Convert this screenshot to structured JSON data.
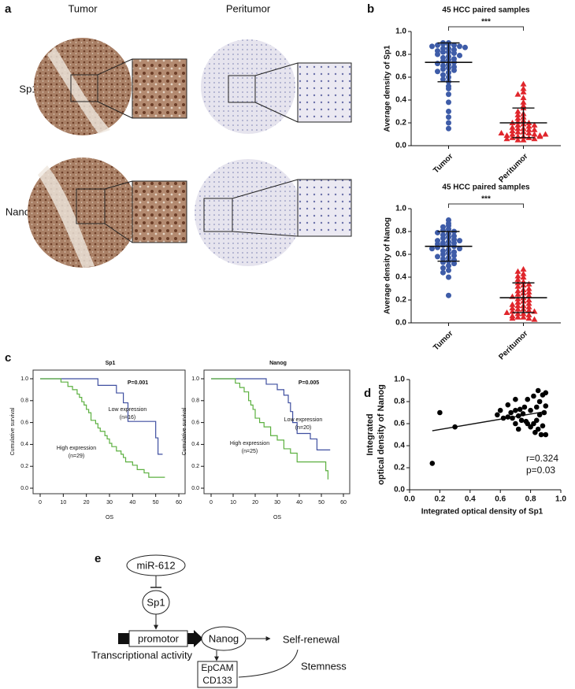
{
  "panel_labels": [
    "a",
    "b",
    "c",
    "d",
    "e"
  ],
  "panel_a": {
    "columns": [
      "Tumor",
      "Peritumor"
    ],
    "rows": [
      "Sp1",
      "Nanog"
    ]
  },
  "chart_data": [
    {
      "type": "strip",
      "title": "45 HCC paired samples",
      "ylabel": "Average density of Sp1",
      "annotation": "***",
      "categories": [
        "Tumor",
        "Peritumor"
      ],
      "groups": [
        {
          "color": "#3e5ca8",
          "marker": "circle",
          "mean": 0.73,
          "sd": 0.17,
          "values": [
            0.9,
            0.9,
            0.89,
            0.89,
            0.88,
            0.88,
            0.87,
            0.87,
            0.86,
            0.85,
            0.85,
            0.84,
            0.83,
            0.82,
            0.82,
            0.81,
            0.8,
            0.79,
            0.78,
            0.77,
            0.76,
            0.75,
            0.74,
            0.73,
            0.72,
            0.71,
            0.7,
            0.69,
            0.68,
            0.67,
            0.66,
            0.65,
            0.64,
            0.62,
            0.6,
            0.58,
            0.56,
            0.52,
            0.5,
            0.45,
            0.38,
            0.3,
            0.25,
            0.2,
            0.15
          ]
        },
        {
          "color": "#e0262c",
          "marker": "triangle",
          "mean": 0.2,
          "sd": 0.13,
          "values": [
            0.54,
            0.5,
            0.47,
            0.45,
            0.42,
            0.38,
            0.35,
            0.33,
            0.3,
            0.28,
            0.27,
            0.25,
            0.24,
            0.22,
            0.21,
            0.2,
            0.19,
            0.18,
            0.17,
            0.16,
            0.15,
            0.15,
            0.14,
            0.13,
            0.12,
            0.12,
            0.11,
            0.1,
            0.1,
            0.09,
            0.09,
            0.08,
            0.08,
            0.07,
            0.07,
            0.06,
            0.06,
            0.05,
            0.05,
            0.2,
            0.18,
            0.14,
            0.11,
            0.08,
            0.1
          ]
        }
      ],
      "ylim": [
        0,
        1
      ],
      "yticks": [
        {
          "value": 0,
          "label": "0.0"
        },
        0.2,
        0.4,
        0.6,
        0.8,
        {
          "value": 1,
          "label": "1.0"
        }
      ]
    },
    {
      "type": "strip",
      "title": "45 HCC paired samples",
      "ylabel": "Average density of Nanog",
      "annotation": "***",
      "categories": [
        "Tumor",
        "Peritumor"
      ],
      "groups": [
        {
          "color": "#3e5ca8",
          "marker": "circle",
          "mean": 0.67,
          "sd": 0.13,
          "values": [
            0.9,
            0.87,
            0.85,
            0.84,
            0.82,
            0.81,
            0.8,
            0.79,
            0.78,
            0.77,
            0.76,
            0.75,
            0.74,
            0.73,
            0.72,
            0.72,
            0.71,
            0.7,
            0.7,
            0.69,
            0.68,
            0.68,
            0.67,
            0.66,
            0.65,
            0.65,
            0.64,
            0.63,
            0.62,
            0.61,
            0.6,
            0.59,
            0.58,
            0.57,
            0.56,
            0.55,
            0.54,
            0.53,
            0.52,
            0.5,
            0.48,
            0.46,
            0.44,
            0.4,
            0.24
          ]
        },
        {
          "color": "#e0262c",
          "marker": "triangle",
          "mean": 0.22,
          "sd": 0.13,
          "values": [
            0.47,
            0.45,
            0.43,
            0.41,
            0.4,
            0.38,
            0.36,
            0.35,
            0.34,
            0.33,
            0.32,
            0.3,
            0.29,
            0.28,
            0.27,
            0.26,
            0.25,
            0.24,
            0.23,
            0.22,
            0.21,
            0.2,
            0.19,
            0.18,
            0.17,
            0.16,
            0.15,
            0.15,
            0.14,
            0.13,
            0.12,
            0.12,
            0.11,
            0.1,
            0.1,
            0.09,
            0.08,
            0.08,
            0.07,
            0.06,
            0.05,
            0.05,
            0.04,
            0.04,
            0.03
          ]
        }
      ],
      "ylim": [
        0,
        1
      ],
      "yticks": [
        {
          "value": 0,
          "label": "0.0"
        },
        0.2,
        0.4,
        0.6,
        0.8,
        {
          "value": 1,
          "label": "1.0"
        }
      ]
    },
    {
      "type": "line",
      "step": true,
      "title": "Sp1",
      "xlabel": "OS",
      "ylabel": "Cumulative survival",
      "annotations": [
        "P=0.001"
      ],
      "series": [
        {
          "name": "Low expression",
          "n_label": "(n=16)",
          "color": "#3f4fa0",
          "x": [
            0,
            25,
            33,
            36,
            38,
            50,
            51,
            53
          ],
          "values": [
            1,
            0.94,
            0.87,
            0.78,
            0.61,
            0.46,
            0.31,
            0.31
          ]
        },
        {
          "name": "High expression",
          "n_label": "(n=29)",
          "color": "#5cb040",
          "x": [
            0,
            9,
            12,
            14,
            16,
            17,
            18,
            19,
            20,
            21,
            22,
            24,
            25,
            26,
            28,
            29,
            30,
            31,
            33,
            35,
            36,
            37,
            40,
            42,
            45,
            47,
            54
          ],
          "values": [
            1,
            0.97,
            0.93,
            0.9,
            0.86,
            0.83,
            0.79,
            0.76,
            0.72,
            0.69,
            0.62,
            0.59,
            0.55,
            0.52,
            0.48,
            0.45,
            0.41,
            0.38,
            0.34,
            0.31,
            0.28,
            0.24,
            0.21,
            0.17,
            0.14,
            0.1,
            0.1
          ]
        }
      ],
      "xlim": [
        0,
        60
      ],
      "xticks": [
        0,
        10,
        20,
        30,
        40,
        50,
        60
      ],
      "ylim": [
        0,
        1
      ],
      "yticks": [
        {
          "value": 0,
          "label": "0.0"
        },
        0.2,
        0.4,
        0.6,
        0.8,
        {
          "value": 1,
          "label": "1.0"
        }
      ]
    },
    {
      "type": "line",
      "step": true,
      "title": "Nanog",
      "xlabel": "OS",
      "ylabel": "Cumulative survival",
      "annotations": [
        "P=0.005"
      ],
      "series": [
        {
          "name": "Low expression",
          "n_label": "(n=20)",
          "color": "#3f4fa0",
          "x": [
            0,
            25,
            30,
            33,
            35,
            36,
            37,
            39,
            45,
            48,
            54
          ],
          "values": [
            1,
            0.95,
            0.9,
            0.85,
            0.78,
            0.7,
            0.6,
            0.5,
            0.45,
            0.35,
            0.35
          ]
        },
        {
          "name": "High expression",
          "n_label": "(n=25)",
          "color": "#5cb040",
          "x": [
            0,
            11,
            13,
            15,
            17,
            18,
            19,
            20,
            22,
            24,
            27,
            30,
            33,
            36,
            39,
            52,
            53
          ],
          "values": [
            1,
            0.96,
            0.92,
            0.88,
            0.8,
            0.76,
            0.72,
            0.64,
            0.6,
            0.56,
            0.48,
            0.44,
            0.36,
            0.32,
            0.24,
            0.16,
            0.08
          ]
        }
      ],
      "xlim": [
        0,
        60
      ],
      "xticks": [
        0,
        10,
        20,
        30,
        40,
        50,
        60
      ],
      "ylim": [
        0,
        1
      ],
      "yticks": [
        {
          "value": 0,
          "label": "0.0"
        },
        0.2,
        0.4,
        0.6,
        0.8,
        {
          "value": 1,
          "label": "1.0"
        }
      ]
    },
    {
      "type": "scatter",
      "xlabel": "Integrated optical density of Sp1",
      "ylabel": [
        "Integrated",
        "optical density of Nanog"
      ],
      "annotations": [
        "r=0.324",
        "p=0.03"
      ],
      "color": "#000000",
      "x": [
        0.15,
        0.2,
        0.3,
        0.58,
        0.6,
        0.62,
        0.65,
        0.67,
        0.68,
        0.7,
        0.7,
        0.72,
        0.72,
        0.74,
        0.75,
        0.76,
        0.77,
        0.78,
        0.8,
        0.8,
        0.82,
        0.82,
        0.83,
        0.84,
        0.85,
        0.85,
        0.86,
        0.86,
        0.87,
        0.88,
        0.88,
        0.89,
        0.9,
        0.9,
        0.7,
        0.73,
        0.78,
        0.65,
        0.84,
        0.9
      ],
      "values": [
        0.24,
        0.7,
        0.57,
        0.68,
        0.72,
        0.65,
        0.77,
        0.7,
        0.65,
        0.6,
        0.72,
        0.67,
        0.55,
        0.63,
        0.69,
        0.75,
        0.62,
        0.82,
        0.72,
        0.57,
        0.6,
        0.85,
        0.52,
        0.63,
        0.9,
        0.55,
        0.8,
        0.68,
        0.5,
        0.58,
        0.86,
        0.7,
        0.76,
        0.5,
        0.82,
        0.73,
        0.6,
        0.66,
        0.75,
        0.88
      ],
      "fit_line": {
        "x": [
          0.15,
          0.9
        ],
        "values": [
          0.535,
          0.71
        ]
      },
      "xlim": [
        0,
        1
      ],
      "xticks": [
        {
          "value": 0,
          "label": "0.0"
        },
        0.2,
        0.4,
        0.6,
        0.8,
        {
          "value": 1,
          "label": "1.0"
        }
      ],
      "ylim": [
        0,
        1
      ],
      "yticks": [
        {
          "value": 0,
          "label": "0.0"
        },
        0.2,
        0.4,
        0.6,
        0.8,
        {
          "value": 1,
          "label": "1.0"
        }
      ]
    }
  ],
  "diagram": {
    "nodes": [
      "miR-612",
      "Sp1",
      "promotor",
      "Nanog",
      "Self-renewal",
      "EpCAM",
      "CD133"
    ],
    "labels": [
      "Transcriptional activity",
      "Stemness"
    ]
  }
}
